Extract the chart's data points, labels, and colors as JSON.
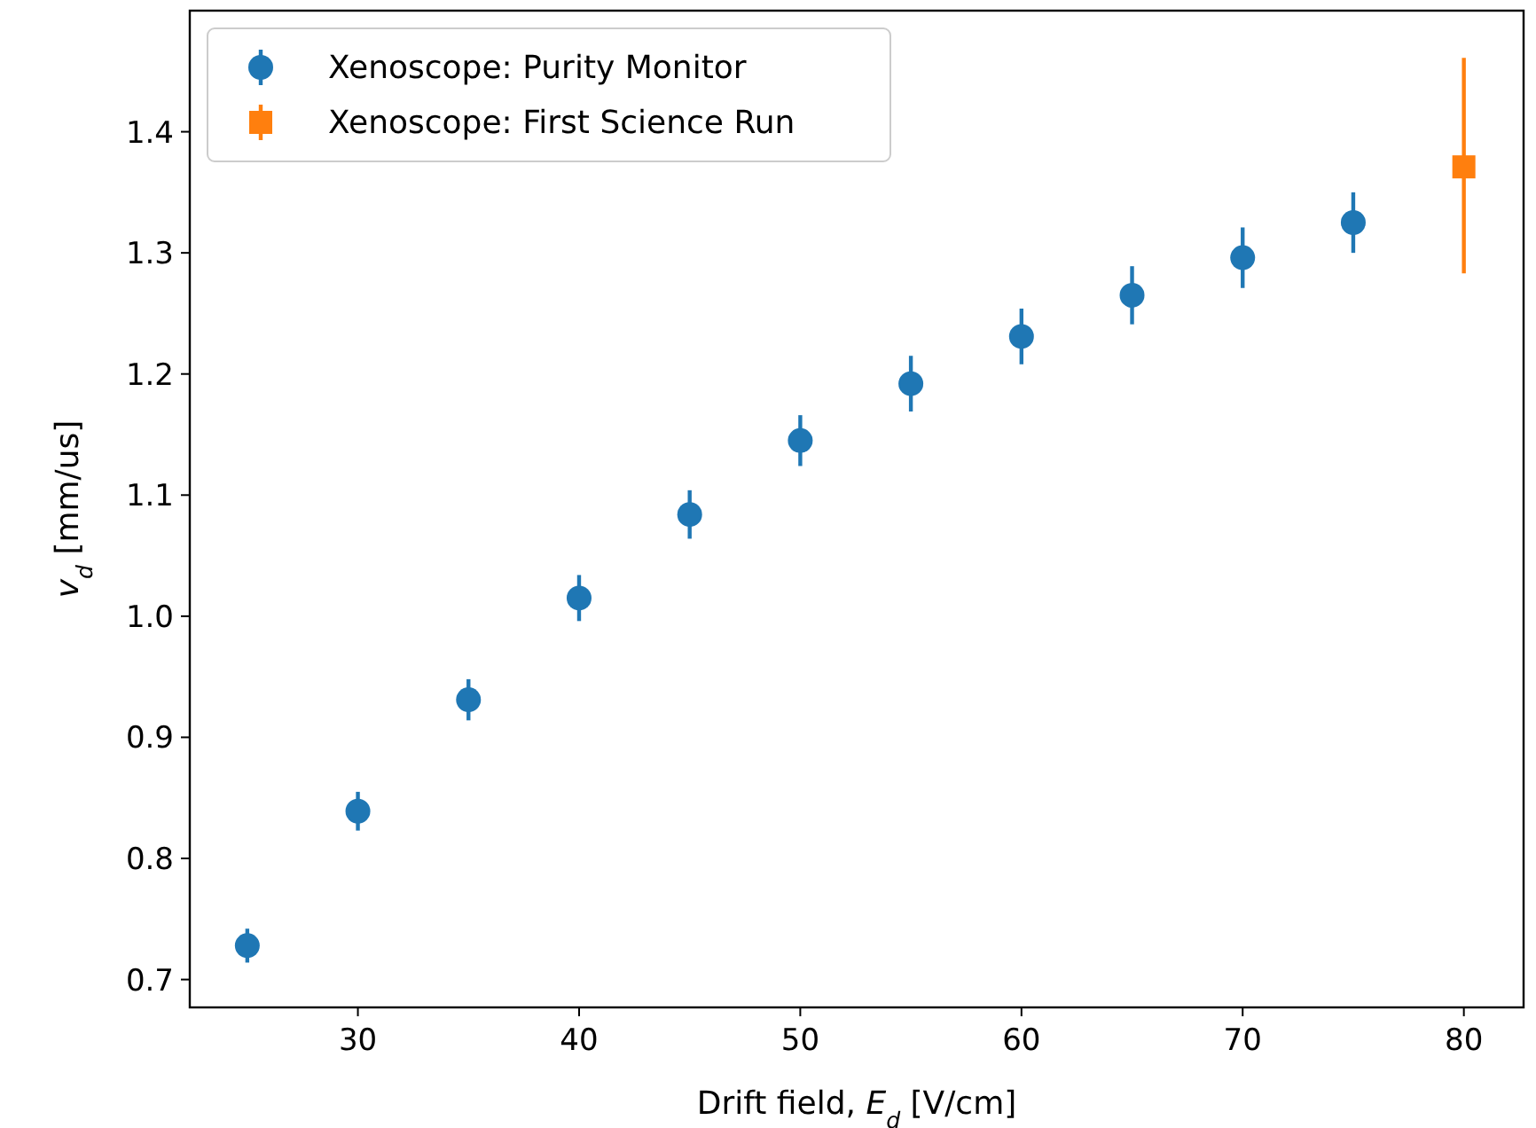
{
  "chart_data": {
    "type": "scatter",
    "xlabel": "Drift field, E$_{d}$ [V/cm]",
    "ylabel": "v$_{d}$ [mm/us]",
    "xlim": [
      22.4,
      82.7
    ],
    "ylim": [
      0.677,
      1.5
    ],
    "xticks": [
      30,
      40,
      50,
      60,
      70,
      80
    ],
    "yticks": [
      0.7,
      0.8,
      0.9,
      {
        "value": 1,
        "label": "1.0"
      },
      1.1,
      1.2,
      1.3,
      1.4
    ],
    "grid": false,
    "legend": "top left",
    "series": [
      {
        "name": "Xenoscope: Purity Monitor",
        "color": "#1f77b4",
        "marker": "circle",
        "x": [
          25,
          30,
          35,
          40,
          45,
          50,
          55,
          60,
          65,
          70,
          75
        ],
        "values": [
          0.728,
          0.839,
          0.931,
          1.015,
          1.084,
          1.145,
          1.192,
          1.231,
          1.265,
          1.296,
          1.325
        ],
        "errors": [
          0.014,
          0.016,
          0.017,
          0.019,
          0.02,
          0.021,
          0.023,
          0.023,
          0.024,
          0.025,
          0.025
        ]
      },
      {
        "name": "Xenoscope: First Science Run",
        "color": "#ff7f0e",
        "marker": "square",
        "x": [
          80
        ],
        "values": [
          1.371
        ],
        "errors": [
          [
            1.283,
            1.461
          ]
        ]
      }
    ]
  }
}
